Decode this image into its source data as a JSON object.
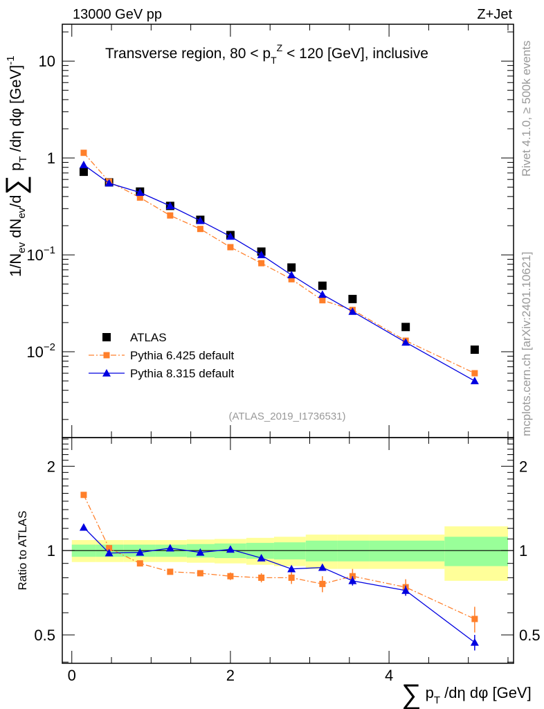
{
  "chart_data": {
    "type": "line",
    "header_left": "13000 GeV pp",
    "header_right": "Z+Jet",
    "title": "Transverse region, 80 < p",
    "title_sub": "T",
    "title_sup": "Z",
    "title_rest": " < 120 [GeV], inclusive",
    "ylabel": "1/N_ev dN_ev/d∑ p_T /dη dφ [GeV]^-1",
    "ylabel_parts": {
      "a": "1/N",
      "b": "ev",
      "c": " dN",
      "d": "ev",
      "e": "/d",
      "sigma": "∑",
      "f": " p",
      "g": "T",
      "h": " /dη dφ  [GeV]",
      "i": "-1"
    },
    "xlabel_parts": {
      "sigma": "∑",
      "p": " p",
      "sub": "T",
      "rest": " /dη dφ [GeV]"
    },
    "ratio_ylabel": "Ratio to ATLAS",
    "side_text_top": "Rivet 4.1.0, ≥ 500k events",
    "side_text_bottom": "mcplots.cern.ch [arXiv:2401.10621]",
    "watermark": "(ATLAS_2019_I1736531)",
    "xlim": [
      -0.12,
      5.57
    ],
    "ylim": [
      0.0013,
      24
    ],
    "yscale": "log",
    "ratio_ylim": [
      0.396,
      2.53
    ],
    "x_ticks": [
      0,
      2,
      4
    ],
    "x_tick_labels": [
      "0",
      "2",
      "4"
    ],
    "y_tick_labels": [
      {
        "v": 10,
        "t": "10",
        "e": ""
      },
      {
        "v": 1,
        "t": "1",
        "e": ""
      },
      {
        "v": 0.1,
        "t": "10",
        "e": "−1"
      },
      {
        "v": 0.01,
        "t": "10",
        "e": "−2"
      }
    ],
    "ratio_tick_labels": [
      {
        "v": 2,
        "t": "2"
      },
      {
        "v": 1,
        "t": "1"
      },
      {
        "v": 0.5,
        "t": "0.5"
      }
    ],
    "x": [
      0.15,
      0.47,
      0.86,
      1.24,
      1.62,
      2.0,
      2.39,
      2.77,
      3.16,
      3.54,
      4.21,
      5.08
    ],
    "bin_edges": [
      0,
      0.3,
      0.65,
      1.05,
      1.45,
      1.8,
      2.2,
      2.55,
      2.95,
      3.35,
      3.75,
      4.7,
      5.5
    ],
    "band_inner": [
      0.05,
      0.05,
      0.05,
      0.05,
      0.055,
      0.06,
      0.065,
      0.07,
      0.085,
      0.085,
      0.085,
      0.12
    ],
    "band_outer": [
      0.09,
      0.09,
      0.09,
      0.09,
      0.095,
      0.1,
      0.11,
      0.12,
      0.14,
      0.14,
      0.14,
      0.22
    ],
    "legend_position": "bottom-left",
    "series": [
      {
        "name": "ATLAS",
        "color": "#000000",
        "marker": "square",
        "line": "none",
        "values": [
          0.72,
          0.56,
          0.45,
          0.32,
          0.23,
          0.16,
          0.108,
          0.074,
          0.048,
          0.035,
          0.018,
          0.0105
        ]
      },
      {
        "name": "Pythia 6.425 default",
        "color": "#ff7f2a",
        "marker": "square",
        "line": "dashdot",
        "values": [
          1.13,
          0.57,
          0.39,
          0.255,
          0.185,
          0.12,
          0.082,
          0.056,
          0.034,
          0.027,
          0.013,
          0.006
        ],
        "ratio": [
          1.58,
          1.02,
          0.9,
          0.84,
          0.83,
          0.81,
          0.8,
          0.8,
          0.76,
          0.81,
          0.74,
          0.57
        ],
        "ratio_err": [
          0.01,
          0.01,
          0.01,
          0.015,
          0.02,
          0.025,
          0.03,
          0.04,
          0.05,
          0.05,
          0.05,
          0.06
        ]
      },
      {
        "name": "Pythia 8.315 default",
        "color": "#0000e0",
        "marker": "triangle",
        "line": "solid",
        "values": [
          0.85,
          0.55,
          0.44,
          0.32,
          0.225,
          0.155,
          0.1,
          0.062,
          0.039,
          0.026,
          0.0125,
          0.005
        ],
        "ratio": [
          1.21,
          0.98,
          0.985,
          1.02,
          0.985,
          1.01,
          0.94,
          0.86,
          0.87,
          0.78,
          0.72,
          0.47
        ],
        "ratio_err": [
          0.005,
          0.005,
          0.005,
          0.005,
          0.01,
          0.01,
          0.01,
          0.015,
          0.015,
          0.03,
          0.03,
          0.03
        ]
      }
    ]
  }
}
